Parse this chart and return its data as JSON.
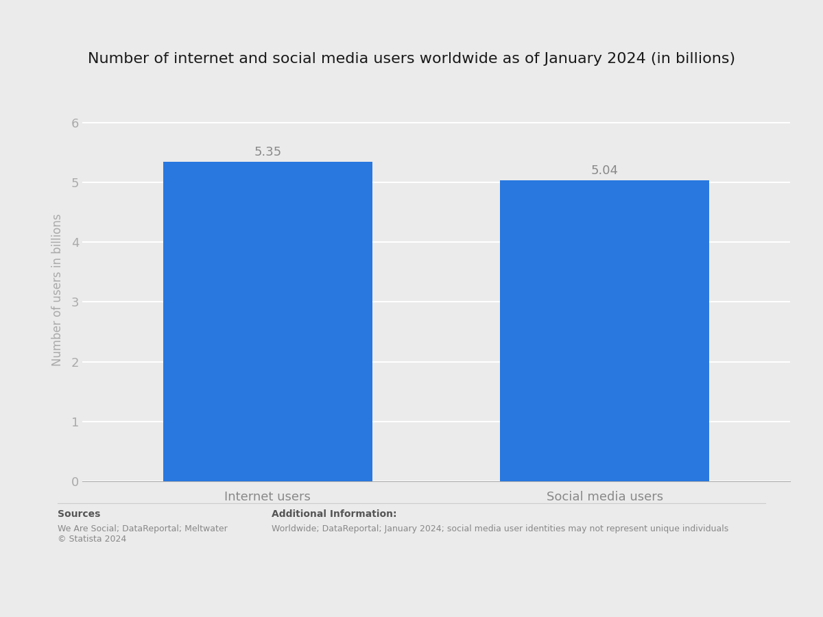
{
  "title": "Number of internet and social media users worldwide as of January 2024 (in billions)",
  "categories": [
    "Internet users",
    "Social media users"
  ],
  "values": [
    5.35,
    5.04
  ],
  "bar_color": "#2878e0",
  "ylabel": "Number of users in billions",
  "ylim": [
    0,
    6.4
  ],
  "yticks": [
    0,
    1,
    2,
    3,
    4,
    5,
    6
  ],
  "background_color": "#ebebeb",
  "plot_bg_color": "#ebebeb",
  "title_fontsize": 16,
  "label_fontsize": 13,
  "tick_fontsize": 13,
  "bar_label_fontsize": 13,
  "sources_text": "Sources",
  "sources_detail": "We Are Social; DataReportal; Meltwater\n© Statista 2024",
  "additional_info_title": "Additional Information:",
  "additional_info_detail": "Worldwide; DataReportal; January 2024; social media user identities may not represent unique individuals"
}
